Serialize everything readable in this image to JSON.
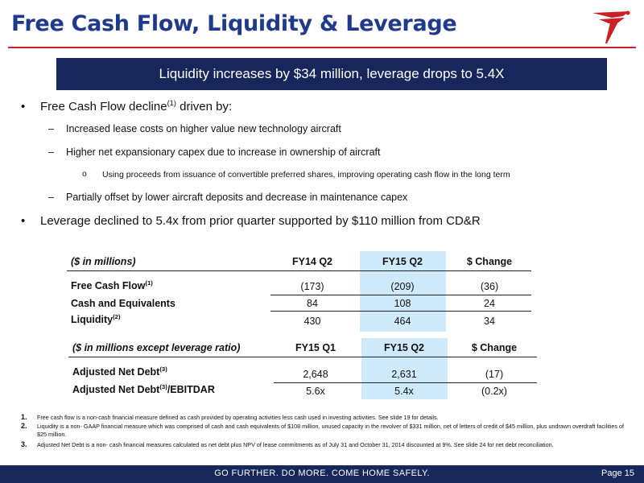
{
  "title": "Free Cash Flow, Liquidity & Leverage",
  "banner": "Liquidity increases by $34 million,  leverage  drops to 5.4X",
  "bullets": {
    "fcf_pre": "Free Cash Flow decline",
    "fcf_sup": "(1)",
    "fcf_post": " driven by:",
    "sub1": "Increased lease costs on higher value new technology aircraft",
    "sub2": "Higher net expansionary capex due to increase in ownership of aircraft",
    "sub2a": "Using proceeds from issuance of convertible preferred shares, improving operating cash flow in the long term",
    "sub3": "Partially offset by lower aircraft deposits and decrease in maintenance capex",
    "leverage": "Leverage declined to 5.4x from prior quarter supported by $110 million from CD&R"
  },
  "table1": {
    "caption": "($ in millions)",
    "headers": [
      "FY14 Q2",
      "FY15 Q2",
      "$ Change"
    ],
    "rows": [
      {
        "label": "Free Cash Flow",
        "sup": "(1)",
        "values": [
          "(173)",
          "(209)",
          "(36)"
        ]
      },
      {
        "label": "Cash and Equivalents",
        "sup": "",
        "values": [
          "84",
          "108",
          "24"
        ]
      },
      {
        "label": "Liquidity",
        "sup": "(2)",
        "values": [
          "430",
          "464",
          "34"
        ]
      }
    ]
  },
  "table2": {
    "caption": "($ in millions except  leverage ratio)",
    "headers": [
      "FY15 Q1",
      "FY15 Q2",
      "$ Change"
    ],
    "rows": [
      {
        "label": "Adjusted Net Debt",
        "sup": "(3)",
        "suffix": "",
        "values": [
          "2,648",
          "2,631",
          "(17)"
        ]
      },
      {
        "label": "Adjusted Net Debt",
        "sup": "(3)",
        "suffix": "/EBITDAR",
        "values": [
          "5.6x",
          "5.4x",
          "(0.2x)"
        ]
      }
    ]
  },
  "notes": [
    {
      "num": "1.",
      "text": "Free cash flow is  a non-cash financial measure defined as cash provided by operating activities less cash used in investing activities.  See slide 19 for details."
    },
    {
      "num": "2.",
      "text": "Liquidity is a non- GAAP financial measure which was comprised of cash and cash equivalents of $108 million, unused capacity in the revolver of $331 million, net of letters of credit of $45 million, plus undrawn overdraft facilities of $25 million."
    },
    {
      "num": "3.",
      "text": "Adjusted Net Debt is a non- cash financial measures calculated as net debt plus NPV of lease commitments as of July 31 and October 31, 2014 discounted at 9%. See slide 24 for net debt reconciliation."
    }
  ],
  "footer": {
    "slogan": "GO FURTHER. DO MORE. COME HOME SAFELY.",
    "page": "Page 15"
  },
  "colors": {
    "title": "#1f3a8c",
    "accent_red": "#cc2027",
    "navy": "#17275c",
    "highlight": "#cfeafa"
  }
}
